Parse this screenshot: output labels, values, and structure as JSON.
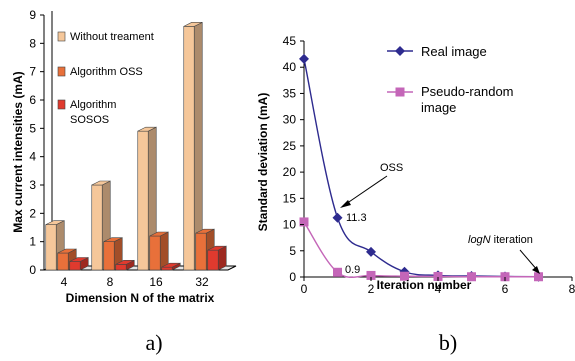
{
  "chart_data": [
    {
      "type": "bar",
      "style": "3d-clustered",
      "caption": "a)",
      "xlabel": "Dimension N of the matrix",
      "ylabel": "Max current intensities (mA)",
      "categories": [
        "4",
        "8",
        "16",
        "32"
      ],
      "ylim": [
        0,
        9
      ],
      "yticks": [
        "0",
        "1",
        "2",
        "3",
        "4",
        "5",
        "6",
        "7",
        "8",
        "9"
      ],
      "legend_position": "inside-left",
      "series": [
        {
          "name": "Without treament",
          "values": [
            1.6,
            3.0,
            4.9,
            8.6
          ],
          "color": "#f5c79a"
        },
        {
          "name": "Algorithm OSS",
          "values": [
            0.6,
            1.0,
            1.2,
            1.3
          ],
          "color": "#e8703a"
        },
        {
          "name": "Algorithm SOSOS",
          "values": [
            0.3,
            0.2,
            0.1,
            0.7
          ],
          "color": "#e03a2e"
        }
      ]
    },
    {
      "type": "line",
      "caption": "b)",
      "xlabel": "Iteration number",
      "ylabel": "Standard deviation (mA)",
      "xlim": [
        0,
        8
      ],
      "ylim": [
        0,
        45
      ],
      "xticks": [
        "0",
        "2",
        "4",
        "6",
        "8"
      ],
      "yticks": [
        "0",
        "5",
        "10",
        "15",
        "20",
        "25",
        "30",
        "35",
        "40",
        "45"
      ],
      "legend_position": "top-right",
      "series": [
        {
          "name": "Real image",
          "x": [
            0,
            1,
            2,
            3,
            4,
            5,
            6,
            7
          ],
          "y": [
            41.6,
            11.3,
            4.8,
            1.0,
            0.3,
            0.2,
            0.1,
            0.05
          ],
          "color": "#2e2b8f",
          "marker": "diamond"
        },
        {
          "name": "Pseudo-random image",
          "x": [
            0,
            1,
            2,
            3,
            4,
            5,
            6,
            7
          ],
          "y": [
            10.5,
            0.9,
            0.3,
            0.15,
            0.1,
            0.05,
            0.05,
            0.05
          ],
          "color": "#c466b8",
          "marker": "square"
        }
      ],
      "annotations": {
        "label_11_3": "11.3",
        "label_0_9": "0.9",
        "oss": "OSS",
        "logn_italic": "logN",
        "logn_rest": " iteration"
      }
    }
  ]
}
